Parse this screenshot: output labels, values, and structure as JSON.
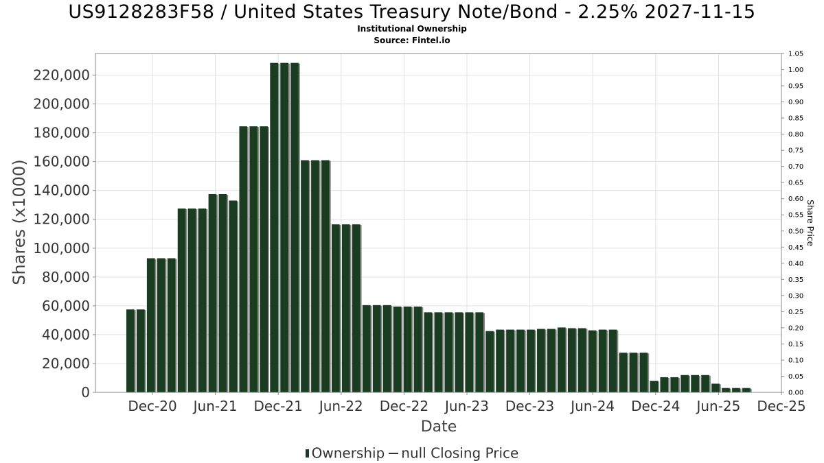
{
  "chart_data": {
    "type": "bar",
    "title": "US9128283F58 / United States Treasury Note/Bond - 2.25% 2027-11-15",
    "subtitle": "Institutional Ownership",
    "source": "Source: Fintel.io",
    "xlabel": "Date",
    "ylabel": "Shares (x1000)",
    "ylabel_right": "Share Price",
    "ylim": [
      0,
      235000
    ],
    "ylim_right": [
      0,
      1.05
    ],
    "y_ticks": [
      "0",
      "20,000",
      "40,000",
      "60,000",
      "80,000",
      "100,000",
      "120,000",
      "140,000",
      "160,000",
      "180,000",
      "200,000",
      "220,000"
    ],
    "y_right_ticks": [
      "0.00",
      "0.05",
      "0.10",
      "0.15",
      "0.20",
      "0.25",
      "0.30",
      "0.35",
      "0.40",
      "0.45",
      "0.50",
      "0.55",
      "0.60",
      "0.65",
      "0.70",
      "0.75",
      "0.80",
      "0.85",
      "0.90",
      "0.95",
      "1.00",
      "1.05"
    ],
    "x_ticks": [
      "Dec-20",
      "Jun-21",
      "Dec-21",
      "Jun-22",
      "Dec-22",
      "Jun-23",
      "Dec-23",
      "Jun-24",
      "Dec-24",
      "Jun-25",
      "Dec-25"
    ],
    "grid": true,
    "bar_color": "#1a3d22",
    "series": [
      {
        "name": "Ownership",
        "values": [
          57500,
          57500,
          93000,
          93000,
          93000,
          127500,
          127500,
          127500,
          137500,
          137500,
          133000,
          184500,
          184500,
          184500,
          228500,
          228500,
          228500,
          161000,
          161000,
          161000,
          116500,
          116500,
          116500,
          60500,
          60500,
          60500,
          59500,
          59500,
          59500,
          55500,
          55500,
          55500,
          55500,
          55500,
          55500,
          42500,
          43500,
          43500,
          43500,
          43500,
          44000,
          44000,
          45000,
          44500,
          44500,
          43000,
          43500,
          43500,
          27500,
          27500,
          27500,
          8000,
          10500,
          10500,
          12000,
          12000,
          12000,
          6000,
          3000,
          3000,
          3000
        ]
      }
    ],
    "legend": {
      "bar_label": "Ownership",
      "line_label": "null Closing Price"
    }
  }
}
